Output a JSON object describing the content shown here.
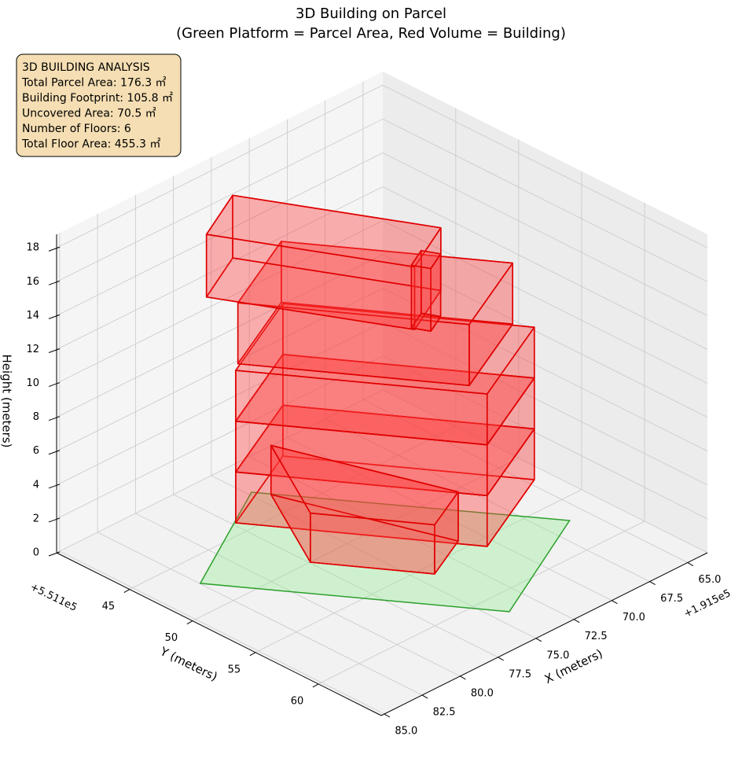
{
  "chart_data": {
    "type": "3d",
    "title": "3D Building on Parcel",
    "subtitle": "(Green Platform = Parcel Area, Red Volume = Building)",
    "xlabel": "X (meters)",
    "ylabel": "Y (meters)",
    "zlabel": "Height (meters)",
    "x_offset_label": "+1.915e5",
    "y_offset_label": "+5.511e5",
    "xlim": [
      63.7,
      85.2
    ],
    "ylim": [
      39.2,
      65
    ],
    "zlim": [
      0,
      18.8
    ],
    "xticks": [
      {
        "value": 65,
        "label": "65.0"
      },
      {
        "value": 67.5,
        "label": "67.5"
      },
      {
        "value": 70,
        "label": "70.0"
      },
      {
        "value": 72.5,
        "label": "72.5"
      },
      {
        "value": 75,
        "label": "75.0"
      },
      {
        "value": 77.5,
        "label": "77.5"
      },
      {
        "value": 80,
        "label": "80.0"
      },
      {
        "value": 82.5,
        "label": "82.5"
      },
      {
        "value": 85,
        "label": "85.0"
      }
    ],
    "yticks": [
      45,
      50,
      55,
      60
    ],
    "zticks": [
      0,
      2,
      4,
      6,
      8,
      10,
      12,
      14,
      16,
      18
    ],
    "grid": true,
    "annotation": [
      "3D BUILDING ANALYSIS",
      "Total Parcel Area: 176.3 ㎡",
      "Building Footprint: 105.8 ㎡",
      "Uncovered Area: 70.5 ㎡",
      "Number of Floors: 6",
      "Total Floor Area: 455.3 ㎡"
    ]
  }
}
